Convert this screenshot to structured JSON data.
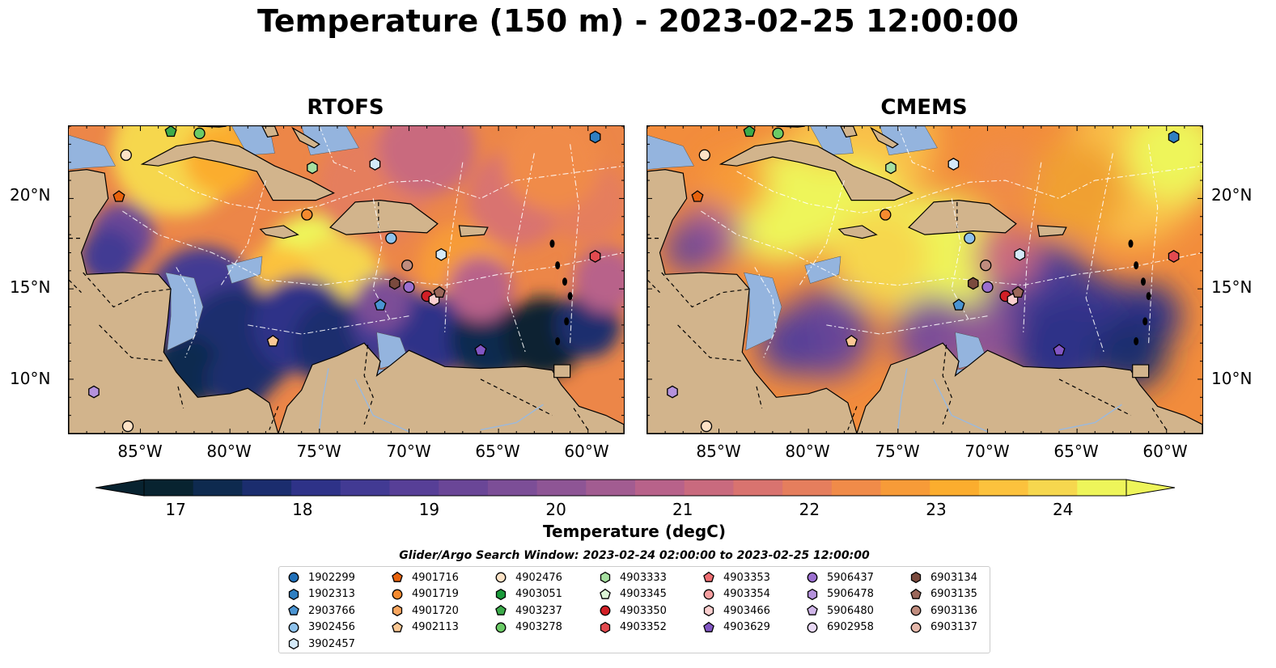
{
  "title": "Temperature (150 m) - 2023-02-25 12:00:00",
  "panels": [
    {
      "title": "RTOFS"
    },
    {
      "title": "CMEMS"
    }
  ],
  "lat_labels": [
    "20°N",
    "15°N",
    "10°N"
  ],
  "lon_labels": [
    "85°W",
    "80°W",
    "75°W",
    "70°W",
    "65°W",
    "60°W"
  ],
  "colorbar": {
    "label": "Temperature (degC)",
    "ticks": [
      "17",
      "18",
      "19",
      "20",
      "21",
      "22",
      "23",
      "24"
    ],
    "min": 17,
    "max": 24.5,
    "extend": "both",
    "colors": [
      "#082330",
      "#0e2a4f",
      "#1b2d6e",
      "#2e3288",
      "#423a93",
      "#573f97",
      "#6a4697",
      "#7c4e97",
      "#8e5595",
      "#a25c91",
      "#b8628a",
      "#c96a7e",
      "#d9736f",
      "#e57e5d",
      "#f08b49",
      "#f79b38",
      "#fbad2e",
      "#fcc23d",
      "#f6d74e",
      "#eef55a"
    ]
  },
  "legend": {
    "title": "Glider/Argo Search Window: 2023-02-24 02:00:00 to 2023-02-25 12:00:00",
    "items": [
      {
        "id": "1902299",
        "marker": "circle",
        "color": "#1f6fb8"
      },
      {
        "id": "1902313",
        "marker": "hexagon",
        "color": "#2f7fc1"
      },
      {
        "id": "2903766",
        "marker": "pentagon",
        "color": "#4a94d2"
      },
      {
        "id": "3902456",
        "marker": "circle",
        "color": "#8ec2ec"
      },
      {
        "id": "3902457",
        "marker": "hexagon",
        "color": "#d4e9f8"
      },
      {
        "id": "4901716",
        "marker": "pentagon",
        "color": "#e8620c"
      },
      {
        "id": "4901719",
        "marker": "circle",
        "color": "#f58a2f"
      },
      {
        "id": "4901720",
        "marker": "hexagon",
        "color": "#f9a65e"
      },
      {
        "id": "4902113",
        "marker": "pentagon",
        "color": "#fbc894"
      },
      {
        "id": "4902476",
        "marker": "circle",
        "color": "#fde2c6"
      },
      {
        "id": "4903051",
        "marker": "hexagon",
        "color": "#1a9a3a"
      },
      {
        "id": "4903237",
        "marker": "pentagon",
        "color": "#3cab4a"
      },
      {
        "id": "4903278",
        "marker": "circle",
        "color": "#6bcb66"
      },
      {
        "id": "4903333",
        "marker": "hexagon",
        "color": "#a6e0a0"
      },
      {
        "id": "4903345",
        "marker": "pentagon",
        "color": "#dcf5d6"
      },
      {
        "id": "4903350",
        "marker": "circle",
        "color": "#d21f26"
      },
      {
        "id": "4903352",
        "marker": "hexagon",
        "color": "#e34a4f"
      },
      {
        "id": "4903353",
        "marker": "pentagon",
        "color": "#ef6e72"
      },
      {
        "id": "4903354",
        "marker": "circle",
        "color": "#f59fa0"
      },
      {
        "id": "4903466",
        "marker": "hexagon",
        "color": "#fbcfcf"
      },
      {
        "id": "4903629",
        "marker": "pentagon",
        "color": "#8256c4"
      },
      {
        "id": "5906437",
        "marker": "circle",
        "color": "#9b6fcf"
      },
      {
        "id": "5906478",
        "marker": "hexagon",
        "color": "#b592dc"
      },
      {
        "id": "5906480",
        "marker": "pentagon",
        "color": "#cfb5e8"
      },
      {
        "id": "6902958",
        "marker": "circle",
        "color": "#e8d8f5"
      },
      {
        "id": "6903134",
        "marker": "hexagon",
        "color": "#7a4a3e"
      },
      {
        "id": "6903135",
        "marker": "pentagon",
        "color": "#9b675a"
      },
      {
        "id": "6903136",
        "marker": "circle",
        "color": "#c08c7e"
      },
      {
        "id": "6903137",
        "marker": "circle",
        "color": "#e5b8ab"
      }
    ]
  },
  "map_extent": {
    "lon": [
      -89,
      -58
    ],
    "lat": [
      7,
      24
    ]
  },
  "floats_on_map": [
    {
      "id": "4902476",
      "lon": -85.8,
      "lat": 22.4
    },
    {
      "id": "4901716",
      "lon": -86.2,
      "lat": 20.1
    },
    {
      "id": "4903278",
      "lon": -81.7,
      "lat": 23.6
    },
    {
      "id": "4903237",
      "lon": -83.3,
      "lat": 23.7
    },
    {
      "id": "4903333",
      "lon": -75.4,
      "lat": 21.7
    },
    {
      "id": "3902457",
      "lon": -71.9,
      "lat": 21.9
    },
    {
      "id": "1902313",
      "lon": -59.6,
      "lat": 23.4
    },
    {
      "id": "4901719",
      "lon": -75.7,
      "lat": 19.1
    },
    {
      "id": "3902456",
      "lon": -71.0,
      "lat": 17.8
    },
    {
      "id": "3902457",
      "lon": -68.2,
      "lat": 16.9
    },
    {
      "id": "4903352",
      "lon": -59.6,
      "lat": 16.8
    },
    {
      "id": "6903136",
      "lon": -70.1,
      "lat": 16.3
    },
    {
      "id": "6903134",
      "lon": -70.8,
      "lat": 15.3
    },
    {
      "id": "5906437",
      "lon": -70.0,
      "lat": 15.1
    },
    {
      "id": "4903350",
      "lon": -69.0,
      "lat": 14.6
    },
    {
      "id": "4903466",
      "lon": -68.6,
      "lat": 14.4
    },
    {
      "id": "6903135",
      "lon": -68.3,
      "lat": 14.8
    },
    {
      "id": "2903766",
      "lon": -71.6,
      "lat": 14.1
    },
    {
      "id": "4902113",
      "lon": -77.6,
      "lat": 12.1
    },
    {
      "id": "4903629",
      "lon": -66.0,
      "lat": 11.6
    },
    {
      "id": "5906478",
      "lon": -87.6,
      "lat": 9.3
    },
    {
      "id": "4902476",
      "lon": -85.7,
      "lat": 7.4
    }
  ]
}
